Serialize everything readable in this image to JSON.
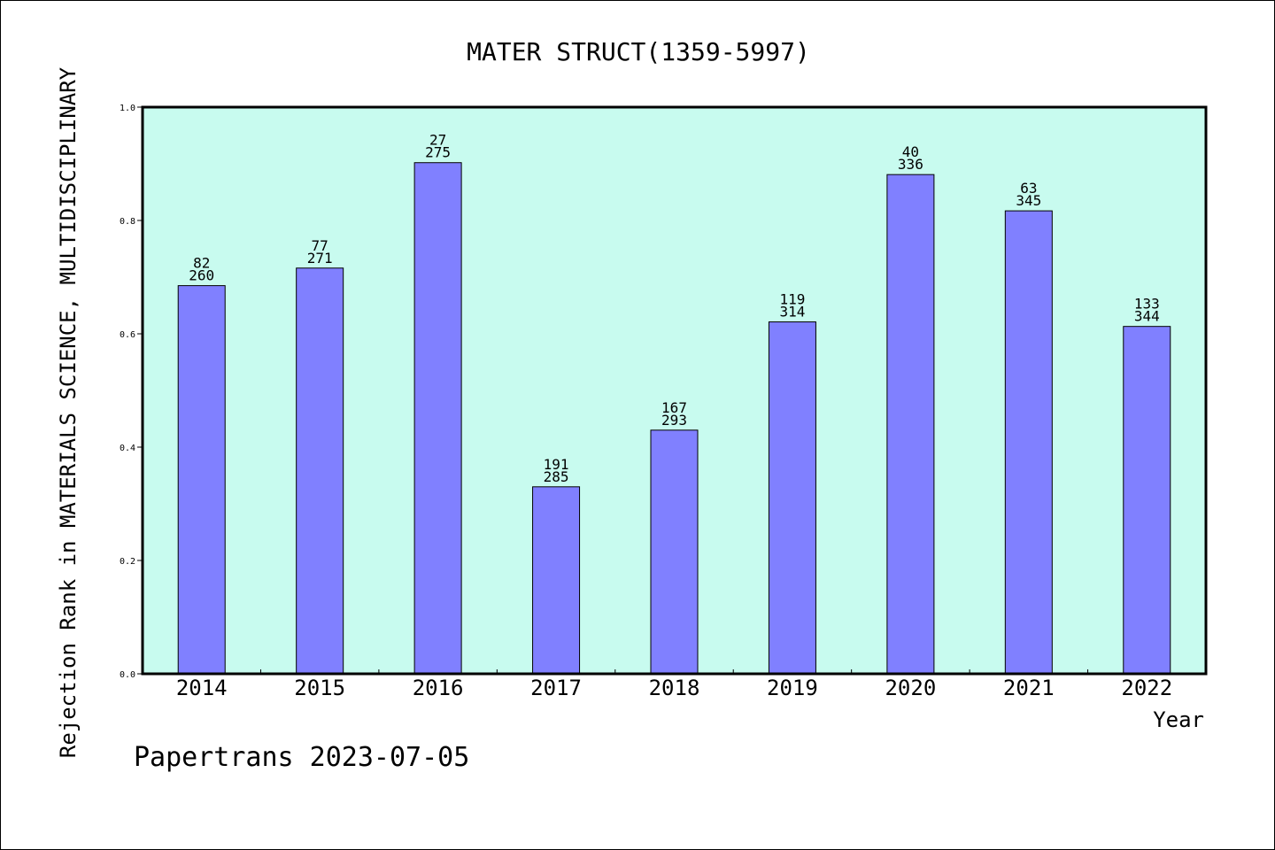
{
  "footer": "Papertrans 2023-07-05",
  "colors": {
    "plot_background": "#c8fbef",
    "bar_fill": "#8080ff",
    "bar_stroke": "#000000",
    "frame": "#000000"
  },
  "chart_data": {
    "type": "bar",
    "title": "MATER STRUCT(1359-5997)",
    "xlabel": "Year",
    "ylabel": "Rejection Rank in MATERIALS SCIENCE, MULTIDISCIPLINARY",
    "ylim": [
      0,
      1.0
    ],
    "yticks": [
      "0.0",
      "0.2",
      "0.4",
      "0.6",
      "0.8",
      "1.0"
    ],
    "grid": false,
    "categories": [
      "2014",
      "2015",
      "2016",
      "2017",
      "2018",
      "2019",
      "2020",
      "2021",
      "2022"
    ],
    "values": [
      0.685,
      0.716,
      0.902,
      0.33,
      0.43,
      0.621,
      0.881,
      0.817,
      0.613
    ],
    "rank_labels": [
      "82",
      "77",
      "27",
      "191",
      "167",
      "119",
      "40",
      "63",
      "133"
    ],
    "total_labels": [
      "260",
      "271",
      "275",
      "285",
      "293",
      "314",
      "336",
      "345",
      "344"
    ]
  }
}
